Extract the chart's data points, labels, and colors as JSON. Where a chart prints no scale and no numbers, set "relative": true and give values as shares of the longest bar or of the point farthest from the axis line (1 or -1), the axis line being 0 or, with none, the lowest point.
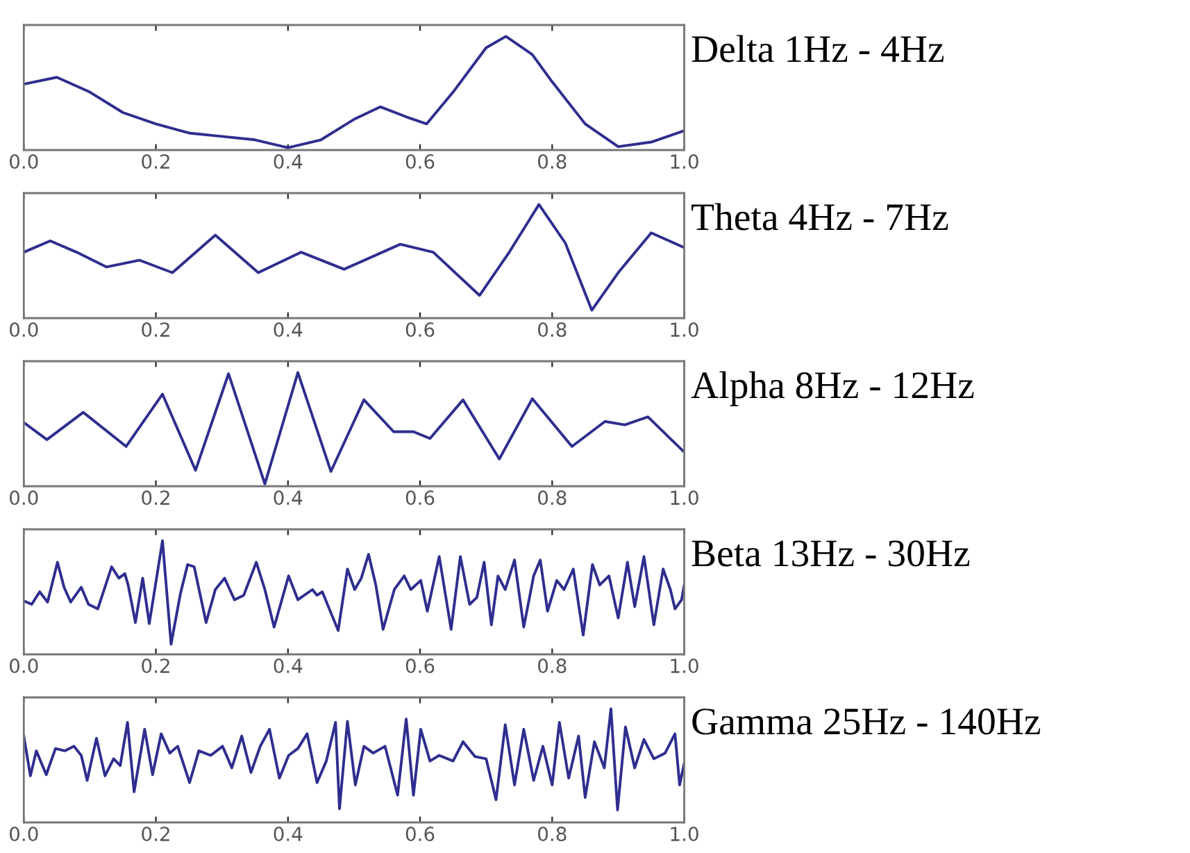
{
  "chart_data": [
    {
      "type": "line",
      "title": "Delta 1Hz - 4Hz",
      "relative": true,
      "tick_labels": "x",
      "grid": false,
      "legend": false,
      "xlim": [
        0,
        1
      ],
      "xticks": [
        {
          "value": 0,
          "label": "0.0"
        },
        {
          "value": 0.2,
          "label": "0.2"
        },
        {
          "value": 0.4,
          "label": "0.4"
        },
        {
          "value": 0.6,
          "label": "0.6"
        },
        {
          "value": 0.8,
          "label": "0.8"
        },
        {
          "value": 1,
          "label": "1.0"
        }
      ],
      "series": [
        {
          "color": "#2e2e8f",
          "x": [
            0,
            0.05,
            0.1,
            0.15,
            0.2,
            0.25,
            0.3,
            0.35,
            0.4,
            0.45,
            0.5,
            0.54,
            0.58,
            0.61,
            0.65,
            0.7,
            0.73,
            0.77,
            0.8,
            0.85,
            0.9,
            0.95,
            1.0
          ],
          "values": [
            0.58,
            0.64,
            0.51,
            0.33,
            0.23,
            0.15,
            0.12,
            0.09,
            0.02,
            0.09,
            0.27,
            0.38,
            0.29,
            0.23,
            0.51,
            0.9,
            1.0,
            0.84,
            0.6,
            0.23,
            0.03,
            0.07,
            0.17
          ]
        }
      ]
    },
    {
      "type": "line",
      "title": "Theta 4Hz - 7Hz",
      "relative": true,
      "tick_labels": "x",
      "grid": false,
      "legend": false,
      "xlim": [
        0,
        1
      ],
      "xticks": [
        {
          "value": 0,
          "label": "0.0"
        },
        {
          "value": 0.2,
          "label": "0.2"
        },
        {
          "value": 0.4,
          "label": "0.4"
        },
        {
          "value": 0.6,
          "label": "0.6"
        },
        {
          "value": 0.8,
          "label": "0.8"
        },
        {
          "value": 1,
          "label": "1.0"
        }
      ],
      "series": [
        {
          "color": "#2e2e8f",
          "x": [
            0,
            0.04,
            0.08,
            0.125,
            0.175,
            0.225,
            0.29,
            0.355,
            0.42,
            0.485,
            0.57,
            0.62,
            0.69,
            0.735,
            0.78,
            0.82,
            0.86,
            0.9,
            0.95,
            1.0
          ],
          "values": [
            0.58,
            0.68,
            0.58,
            0.45,
            0.51,
            0.4,
            0.73,
            0.4,
            0.58,
            0.43,
            0.65,
            0.58,
            0.2,
            0.58,
            1.0,
            0.66,
            0.07,
            0.4,
            0.75,
            0.62
          ]
        }
      ]
    },
    {
      "type": "line",
      "title": "Alpha 8Hz - 12Hz",
      "relative": true,
      "tick_labels": "x",
      "grid": false,
      "legend": false,
      "xlim": [
        0,
        1
      ],
      "xticks": [
        {
          "value": 0,
          "label": "0.0"
        },
        {
          "value": 0.2,
          "label": "0.2"
        },
        {
          "value": 0.4,
          "label": "0.4"
        },
        {
          "value": 0.6,
          "label": "0.6"
        },
        {
          "value": 0.8,
          "label": "0.8"
        },
        {
          "value": 1,
          "label": "1.0"
        }
      ],
      "series": [
        {
          "color": "#2e2e8f",
          "x": [
            0,
            0.035,
            0.09,
            0.155,
            0.21,
            0.26,
            0.31,
            0.365,
            0.415,
            0.465,
            0.515,
            0.56,
            0.59,
            0.615,
            0.665,
            0.72,
            0.77,
            0.83,
            0.88,
            0.91,
            0.945,
            1.0
          ],
          "values": [
            0.56,
            0.41,
            0.65,
            0.35,
            0.81,
            0.14,
            0.99,
            0.02,
            1.0,
            0.13,
            0.76,
            0.48,
            0.48,
            0.42,
            0.76,
            0.24,
            0.77,
            0.35,
            0.57,
            0.54,
            0.61,
            0.3
          ]
        }
      ]
    },
    {
      "type": "line",
      "title": "Beta 13Hz - 30Hz",
      "relative": true,
      "tick_labels": "x",
      "grid": false,
      "legend": false,
      "xlim": [
        0,
        1
      ],
      "xticks": [
        {
          "value": 0,
          "label": "0.0"
        },
        {
          "value": 0.2,
          "label": "0.2"
        },
        {
          "value": 0.4,
          "label": "0.4"
        },
        {
          "value": 0.6,
          "label": "0.6"
        },
        {
          "value": 0.8,
          "label": "0.8"
        },
        {
          "value": 1,
          "label": "1.0"
        }
      ],
      "series": [
        {
          "color": "#2e2e8f",
          "x": [
            0,
            0.012,
            0.024,
            0.036,
            0.051,
            0.061,
            0.071,
            0.087,
            0.098,
            0.112,
            0.133,
            0.144,
            0.153,
            0.158,
            0.169,
            0.18,
            0.19,
            0.21,
            0.223,
            0.237,
            0.248,
            0.258,
            0.276,
            0.29,
            0.304,
            0.319,
            0.333,
            0.352,
            0.365,
            0.379,
            0.401,
            0.415,
            0.437,
            0.444,
            0.452,
            0.476,
            0.49,
            0.501,
            0.511,
            0.522,
            0.533,
            0.544,
            0.561,
            0.576,
            0.586,
            0.601,
            0.611,
            0.629,
            0.647,
            0.661,
            0.675,
            0.686,
            0.697,
            0.708,
            0.718,
            0.729,
            0.743,
            0.757,
            0.772,
            0.782,
            0.793,
            0.807,
            0.818,
            0.832,
            0.847,
            0.861,
            0.872,
            0.886,
            0.9,
            0.914,
            0.925,
            0.939,
            0.954,
            0.968,
            0.979,
            0.986,
            0.996,
            1.0
          ],
          "values": [
            0.47,
            0.44,
            0.55,
            0.46,
            0.81,
            0.59,
            0.46,
            0.59,
            0.44,
            0.4,
            0.77,
            0.67,
            0.71,
            0.61,
            0.28,
            0.67,
            0.27,
            1.0,
            0.09,
            0.53,
            0.79,
            0.77,
            0.28,
            0.57,
            0.67,
            0.48,
            0.52,
            0.81,
            0.57,
            0.24,
            0.69,
            0.48,
            0.57,
            0.52,
            0.55,
            0.21,
            0.75,
            0.57,
            0.67,
            0.88,
            0.61,
            0.22,
            0.57,
            0.69,
            0.57,
            0.65,
            0.38,
            0.86,
            0.22,
            0.86,
            0.44,
            0.5,
            0.81,
            0.26,
            0.69,
            0.57,
            0.83,
            0.24,
            0.69,
            0.83,
            0.38,
            0.65,
            0.57,
            0.75,
            0.17,
            0.79,
            0.61,
            0.69,
            0.32,
            0.81,
            0.42,
            0.86,
            0.26,
            0.75,
            0.57,
            0.4,
            0.48,
            0.61
          ]
        }
      ]
    },
    {
      "type": "line",
      "title": "Gamma 25Hz - 140Hz",
      "relative": true,
      "tick_labels": "x",
      "grid": false,
      "legend": false,
      "xlim": [
        0,
        1
      ],
      "xticks": [
        {
          "value": 0,
          "label": "0.0"
        },
        {
          "value": 0.2,
          "label": "0.2"
        },
        {
          "value": 0.4,
          "label": "0.4"
        },
        {
          "value": 0.6,
          "label": "0.6"
        },
        {
          "value": 0.8,
          "label": "0.8"
        },
        {
          "value": 1,
          "label": "1.0"
        }
      ],
      "series": [
        {
          "color": "#2e2e8f",
          "x": [
            0,
            0.01,
            0.019,
            0.034,
            0.048,
            0.062,
            0.076,
            0.087,
            0.096,
            0.11,
            0.123,
            0.136,
            0.146,
            0.157,
            0.167,
            0.183,
            0.195,
            0.208,
            0.221,
            0.233,
            0.251,
            0.265,
            0.283,
            0.301,
            0.315,
            0.33,
            0.344,
            0.358,
            0.372,
            0.387,
            0.401,
            0.415,
            0.429,
            0.444,
            0.458,
            0.472,
            0.478,
            0.49,
            0.502,
            0.515,
            0.529,
            0.547,
            0.566,
            0.579,
            0.59,
            0.601,
            0.615,
            0.629,
            0.65,
            0.665,
            0.683,
            0.7,
            0.715,
            0.729,
            0.743,
            0.757,
            0.772,
            0.786,
            0.8,
            0.811,
            0.825,
            0.84,
            0.85,
            0.864,
            0.879,
            0.889,
            0.899,
            0.911,
            0.925,
            0.939,
            0.954,
            0.971,
            0.986,
            0.993,
            1.0
          ],
          "values": [
            0.76,
            0.41,
            0.63,
            0.42,
            0.65,
            0.63,
            0.67,
            0.59,
            0.37,
            0.74,
            0.41,
            0.56,
            0.5,
            0.88,
            0.27,
            0.82,
            0.42,
            0.78,
            0.61,
            0.67,
            0.35,
            0.63,
            0.59,
            0.67,
            0.48,
            0.76,
            0.44,
            0.67,
            0.82,
            0.39,
            0.59,
            0.65,
            0.78,
            0.35,
            0.54,
            0.88,
            0.12,
            0.89,
            0.33,
            0.67,
            0.61,
            0.67,
            0.24,
            0.91,
            0.24,
            0.82,
            0.54,
            0.59,
            0.54,
            0.71,
            0.58,
            0.56,
            0.2,
            0.86,
            0.33,
            0.82,
            0.37,
            0.67,
            0.33,
            0.88,
            0.39,
            0.76,
            0.22,
            0.71,
            0.48,
            1.0,
            0.11,
            0.84,
            0.48,
            0.73,
            0.56,
            0.61,
            0.78,
            0.33,
            0.52
          ]
        }
      ]
    }
  ]
}
